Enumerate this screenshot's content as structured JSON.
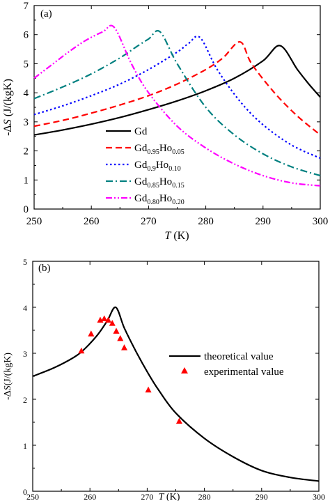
{
  "chart_data": [
    {
      "panel_label": "(a)",
      "type": "line",
      "xlabel": "T (K)",
      "ylabel": "-ΔS (J/(kgK)",
      "xlim": [
        250,
        300
      ],
      "ylim": [
        0,
        7
      ],
      "xticks": [
        250,
        260,
        270,
        280,
        290,
        300
      ],
      "yticks": [
        0,
        1,
        2,
        3,
        4,
        5,
        6,
        7
      ],
      "grid": false,
      "legend_position": "bottom-left",
      "series": [
        {
          "name": "Gd",
          "name_parts": [
            "Gd",
            "",
            "",
            ""
          ],
          "style": "solid",
          "color": "#000000",
          "peak": 293,
          "x": [
            250,
            255,
            260,
            265,
            270,
            275,
            280,
            285,
            290,
            293,
            296,
            298,
            300
          ],
          "y": [
            2.55,
            2.72,
            2.92,
            3.15,
            3.42,
            3.72,
            4.07,
            4.5,
            5.1,
            5.62,
            4.8,
            4.3,
            3.85
          ]
        },
        {
          "name": "Gd0.95Ho0.05",
          "name_parts": [
            "Gd",
            "0.95",
            "Ho",
            "0.05"
          ],
          "style": "dash",
          "color": "#ff0000",
          "peak": 286,
          "x": [
            250,
            255,
            260,
            265,
            270,
            275,
            280,
            283,
            286,
            288,
            292,
            296,
            300
          ],
          "y": [
            2.85,
            3.05,
            3.3,
            3.58,
            3.9,
            4.3,
            4.8,
            5.2,
            5.75,
            5.0,
            4.0,
            3.2,
            2.55
          ]
        },
        {
          "name": "Gd0.9Ho0.10",
          "name_parts": [
            "Gd",
            "0.9",
            "Ho",
            "0.10"
          ],
          "style": "dot",
          "color": "#0000ff",
          "peak": 279,
          "x": [
            250,
            255,
            260,
            265,
            270,
            275,
            277,
            279,
            282,
            286,
            290,
            295,
            300
          ],
          "y": [
            3.25,
            3.55,
            3.9,
            4.3,
            4.8,
            5.4,
            5.7,
            5.9,
            4.8,
            3.7,
            2.9,
            2.2,
            1.75
          ]
        },
        {
          "name": "Gd0.85Ho0.15",
          "name_parts": [
            "Gd",
            "0.85",
            "Ho",
            "0.15"
          ],
          "style": "dashdot",
          "color": "#008080",
          "peak": 272,
          "x": [
            250,
            255,
            260,
            265,
            268,
            270,
            272,
            275,
            280,
            285,
            290,
            295,
            300
          ],
          "y": [
            3.8,
            4.2,
            4.65,
            5.2,
            5.6,
            5.85,
            6.1,
            5.0,
            3.5,
            2.55,
            1.9,
            1.45,
            1.15
          ]
        },
        {
          "name": "Gd0.80Ho0.20",
          "name_parts": [
            "Gd",
            "0.80",
            "Ho",
            "0.20"
          ],
          "style": "dashdotdot",
          "color": "#ff00ff",
          "peak": 264,
          "x": [
            250,
            253,
            256,
            259,
            262,
            264,
            267,
            270,
            275,
            280,
            285,
            290,
            295,
            300
          ],
          "y": [
            4.5,
            4.95,
            5.4,
            5.8,
            6.1,
            6.25,
            5.0,
            4.0,
            2.85,
            2.1,
            1.55,
            1.15,
            0.9,
            0.8
          ]
        }
      ]
    },
    {
      "panel_label": "(b)",
      "type": "line",
      "xlabel": "T (K)",
      "ylabel": "-ΔS(J/(kgK)",
      "xlim": [
        250,
        300
      ],
      "ylim": [
        0,
        5
      ],
      "xticks": [
        250,
        260,
        270,
        280,
        290,
        300
      ],
      "yticks": [
        0,
        1,
        2,
        3,
        4,
        5
      ],
      "grid": false,
      "legend_position": "right",
      "series": [
        {
          "name": "theoretical value",
          "style": "solid",
          "color": "#000000",
          "x": [
            250,
            254,
            258,
            261,
            263,
            264.5,
            266,
            268,
            270,
            272,
            275,
            280,
            285,
            290,
            295,
            300
          ],
          "y": [
            2.5,
            2.7,
            2.98,
            3.35,
            3.7,
            4.0,
            3.55,
            3.05,
            2.6,
            2.2,
            1.7,
            1.15,
            0.75,
            0.45,
            0.3,
            0.22
          ]
        },
        {
          "name": "experimental value",
          "style": "marker-triangle",
          "color": "#ff0000",
          "x": [
            258.5,
            260.2,
            261.8,
            262.5,
            263.2,
            263.9,
            264.6,
            265.3,
            266.0,
            270.2,
            275.6
          ],
          "y": [
            3.05,
            3.42,
            3.72,
            3.75,
            3.72,
            3.65,
            3.48,
            3.32,
            3.12,
            2.2,
            1.52
          ]
        }
      ]
    }
  ]
}
